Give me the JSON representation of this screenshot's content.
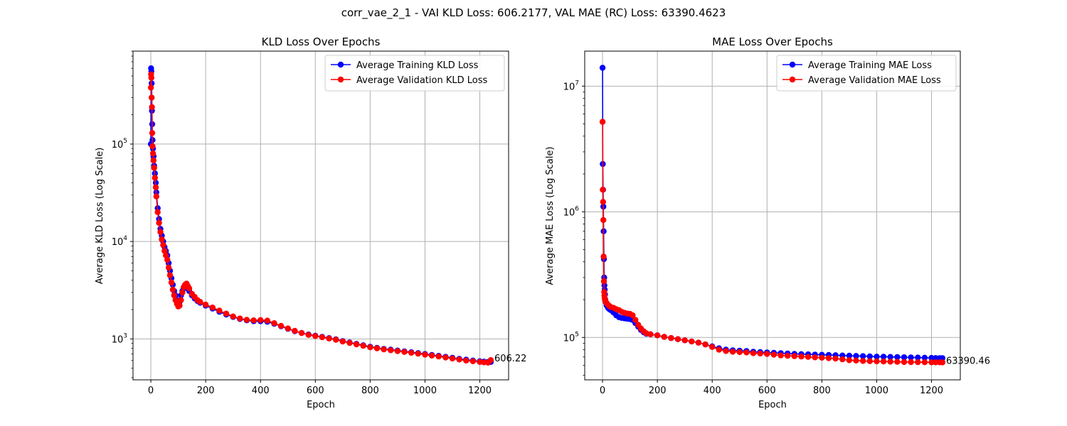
{
  "figure": {
    "suptitle": "corr_vae_2_1 - VAI KLD Loss: 606.2177, VAL MAE (RC) Loss: 63390.4623"
  },
  "colors": {
    "train": "#0000ff",
    "val": "#ff0000",
    "grid": "#b0b0b0"
  },
  "chart_data": [
    {
      "type": "line",
      "title": "KLD Loss Over Epochs",
      "xlabel": "Epoch",
      "ylabel": "Average KLD Loss (Log Scale)",
      "yscale": "log",
      "xlim": [
        -65,
        1305
      ],
      "ylim": [
        380,
        900000
      ],
      "grid": true,
      "legend": "top-right",
      "xticks": [
        0,
        200,
        400,
        600,
        800,
        1000,
        1200
      ],
      "xtick_labels": [
        "0",
        "200",
        "400",
        "600",
        "800",
        "1000",
        "1200"
      ],
      "yticks": [
        1000,
        10000,
        100000
      ],
      "ytick_labels": [
        {
          "base": "10",
          "exp": "3"
        },
        {
          "base": "10",
          "exp": "4"
        },
        {
          "base": "10",
          "exp": "5"
        }
      ],
      "series": [
        {
          "name": "Average Training KLD Loss",
          "color": "#0000ff",
          "x": [
            0,
            1,
            2,
            3,
            4,
            5,
            6,
            8,
            10,
            12,
            15,
            18,
            20,
            25,
            30,
            35,
            40,
            45,
            50,
            55,
            60,
            65,
            70,
            75,
            80,
            85,
            90,
            95,
            100,
            105,
            110,
            115,
            120,
            125,
            130,
            135,
            140,
            150,
            160,
            170,
            180,
            200,
            225,
            250,
            275,
            300,
            325,
            350,
            375,
            400,
            425,
            450,
            475,
            500,
            525,
            550,
            575,
            600,
            625,
            650,
            675,
            700,
            725,
            750,
            775,
            800,
            825,
            850,
            875,
            900,
            925,
            950,
            975,
            1000,
            1025,
            1050,
            1075,
            1100,
            1125,
            1150,
            1175,
            1200,
            1215,
            1230,
            1240
          ],
          "y": [
            100000,
            600000,
            560000,
            420000,
            220000,
            160000,
            110000,
            90000,
            75000,
            60000,
            50000,
            40000,
            32000,
            22000,
            17000,
            13500,
            11500,
            10000,
            8800,
            8000,
            7200,
            6000,
            5000,
            4200,
            3600,
            3100,
            2800,
            2500,
            2300,
            2400,
            2800,
            3100,
            3300,
            3400,
            3450,
            3300,
            3100,
            2800,
            2600,
            2450,
            2350,
            2200,
            2050,
            1900,
            1780,
            1680,
            1600,
            1550,
            1520,
            1520,
            1500,
            1430,
            1350,
            1270,
            1200,
            1150,
            1110,
            1080,
            1050,
            1020,
            990,
            950,
            920,
            890,
            860,
            830,
            810,
            790,
            775,
            760,
            745,
            730,
            715,
            700,
            685,
            670,
            655,
            640,
            625,
            612,
            600,
            590,
            585,
            580,
            580
          ]
        },
        {
          "name": "Average Validation KLD Loss",
          "color": "#ff0000",
          "x": [
            0,
            1,
            2,
            3,
            4,
            5,
            6,
            8,
            10,
            12,
            15,
            18,
            20,
            25,
            30,
            35,
            40,
            45,
            50,
            55,
            60,
            65,
            70,
            75,
            80,
            85,
            90,
            95,
            100,
            105,
            110,
            115,
            120,
            125,
            130,
            135,
            140,
            150,
            160,
            170,
            180,
            200,
            225,
            250,
            275,
            300,
            325,
            350,
            375,
            400,
            425,
            450,
            475,
            500,
            525,
            550,
            575,
            600,
            625,
            650,
            675,
            700,
            725,
            750,
            775,
            800,
            825,
            850,
            875,
            900,
            925,
            950,
            975,
            1000,
            1025,
            1050,
            1075,
            1100,
            1125,
            1150,
            1175,
            1200,
            1215,
            1230,
            1240
          ],
          "y": [
            380000,
            520000,
            480000,
            300000,
            240000,
            130000,
            95000,
            80000,
            68000,
            57000,
            45000,
            36000,
            29000,
            20000,
            15500,
            12500,
            10500,
            9200,
            8000,
            7200,
            6500,
            5400,
            4500,
            3800,
            3200,
            2800,
            2500,
            2300,
            2150,
            2200,
            2500,
            3000,
            3400,
            3600,
            3700,
            3500,
            3300,
            2900,
            2700,
            2500,
            2400,
            2250,
            2100,
            1950,
            1820,
            1700,
            1620,
            1570,
            1550,
            1560,
            1540,
            1450,
            1360,
            1280,
            1210,
            1150,
            1100,
            1070,
            1040,
            1010,
            980,
            940,
            910,
            880,
            850,
            820,
            800,
            780,
            765,
            750,
            735,
            720,
            705,
            690,
            675,
            660,
            645,
            630,
            615,
            600,
            590,
            580,
            575,
            570,
            606.22
          ]
        }
      ],
      "annotation": {
        "x": 1240,
        "y": 606.22,
        "text": "606.22"
      }
    },
    {
      "type": "line",
      "title": "MAE Loss Over Epochs",
      "xlabel": "Epoch",
      "ylabel": "Average MAE Loss (Log Scale)",
      "yscale": "log",
      "xlim": [
        -65,
        1305
      ],
      "ylim": [
        46000,
        19000000
      ],
      "grid": true,
      "legend": "top-right",
      "xticks": [
        0,
        200,
        400,
        600,
        800,
        1000,
        1200
      ],
      "xtick_labels": [
        "0",
        "200",
        "400",
        "600",
        "800",
        "1000",
        "1200"
      ],
      "yticks": [
        100000,
        1000000,
        10000000
      ],
      "ytick_labels": [
        {
          "base": "10",
          "exp": "5"
        },
        {
          "base": "10",
          "exp": "6"
        },
        {
          "base": "10",
          "exp": "7"
        }
      ],
      "series": [
        {
          "name": "Average Training MAE Loss",
          "color": "#0000ff",
          "x": [
            0,
            1,
            2,
            3,
            4,
            5,
            6,
            7,
            8,
            9,
            10,
            12,
            15,
            20,
            25,
            30,
            40,
            50,
            60,
            70,
            80,
            90,
            100,
            110,
            120,
            130,
            140,
            150,
            160,
            175,
            200,
            225,
            250,
            275,
            300,
            325,
            350,
            375,
            400,
            425,
            450,
            475,
            500,
            525,
            550,
            575,
            600,
            625,
            650,
            675,
            700,
            725,
            750,
            775,
            800,
            825,
            850,
            875,
            900,
            925,
            950,
            975,
            1000,
            1025,
            1050,
            1075,
            1100,
            1125,
            1150,
            1175,
            1200,
            1215,
            1230,
            1240
          ],
          "y": [
            14000000,
            2400000,
            1500000,
            1100000,
            700000,
            420000,
            300000,
            260000,
            240000,
            220000,
            200000,
            190000,
            180000,
            172000,
            168000,
            165000,
            158000,
            150000,
            145000,
            143000,
            142000,
            141000,
            140000,
            138000,
            130000,
            122000,
            115000,
            110000,
            107000,
            106000,
            104000,
            101000,
            99000,
            97000,
            95000,
            93000,
            91000,
            88000,
            85000,
            82000,
            80000,
            79000,
            78500,
            78000,
            77000,
            76500,
            76000,
            75500,
            75000,
            74500,
            74000,
            73700,
            73400,
            73100,
            72800,
            72500,
            72200,
            71900,
            71600,
            71300,
            71000,
            70700,
            70400,
            70200,
            70000,
            69800,
            69600,
            69400,
            69200,
            69000,
            68800,
            68600,
            68500,
            68500
          ]
        },
        {
          "name": "Average Validation MAE Loss",
          "color": "#ff0000",
          "x": [
            0,
            1,
            2,
            3,
            4,
            5,
            6,
            7,
            8,
            9,
            10,
            12,
            15,
            20,
            25,
            30,
            40,
            50,
            60,
            70,
            80,
            90,
            100,
            110,
            120,
            130,
            140,
            150,
            160,
            175,
            200,
            225,
            250,
            275,
            300,
            325,
            350,
            375,
            400,
            425,
            450,
            475,
            500,
            525,
            550,
            575,
            600,
            625,
            650,
            675,
            700,
            725,
            750,
            775,
            800,
            825,
            850,
            875,
            900,
            925,
            950,
            975,
            1000,
            1025,
            1050,
            1075,
            1100,
            1125,
            1150,
            1175,
            1200,
            1215,
            1230,
            1240
          ],
          "y": [
            5200000,
            1500000,
            1200000,
            860000,
            440000,
            280000,
            230000,
            215000,
            205000,
            200000,
            195000,
            192000,
            188000,
            182000,
            178000,
            175000,
            172000,
            168000,
            165000,
            160000,
            157000,
            155000,
            154000,
            150000,
            138000,
            126000,
            118000,
            112000,
            108000,
            106000,
            104000,
            101000,
            99000,
            97000,
            95000,
            93000,
            91000,
            88000,
            84000,
            80000,
            78000,
            77000,
            76500,
            76000,
            75000,
            74500,
            74000,
            73000,
            72000,
            71500,
            71000,
            70500,
            70000,
            69500,
            69000,
            68500,
            68000,
            67000,
            66000,
            65500,
            65000,
            64800,
            64600,
            64400,
            64200,
            64000,
            63800,
            63700,
            63600,
            63500,
            63450,
            63420,
            63400,
            63390.46
          ]
        }
      ],
      "annotation": {
        "x": 1240,
        "y": 63390.46,
        "text": "63390.46"
      }
    }
  ]
}
